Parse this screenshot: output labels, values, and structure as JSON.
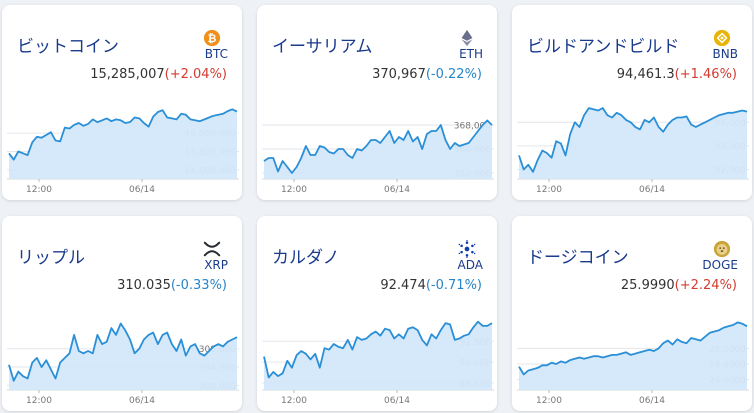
{
  "cards": [
    {
      "id": "btc",
      "name": "ビットコイン",
      "symbol": "BTC",
      "price": "15,285,007",
      "change": "(+2.04%)",
      "direction": "up",
      "icon": "bitcoin-icon",
      "icon_color": "#f0901a",
      "chart_data": {
        "type": "area",
        "ylim": [
          14500000,
          15350000
        ],
        "yticks": [
          15000000,
          14800000,
          14600000
        ],
        "ytick_labels": [
          "15,000,000",
          "14,800,000",
          "14,600,000"
        ],
        "xticks": [
          "12:00",
          "06/14"
        ],
        "values": [
          14780000,
          14710000,
          14800000,
          14780000,
          14760000,
          14900000,
          14960000,
          14950000,
          14980000,
          15010000,
          14920000,
          14910000,
          15060000,
          15050000,
          15090000,
          15110000,
          15080000,
          15100000,
          15150000,
          15120000,
          15140000,
          15160000,
          15130000,
          15150000,
          15140000,
          15110000,
          15120000,
          15170000,
          15160000,
          15110000,
          15070000,
          15180000,
          15230000,
          15250000,
          15170000,
          15160000,
          15150000,
          15210000,
          15200000,
          15150000,
          15140000,
          15130000,
          15150000,
          15170000,
          15190000,
          15200000,
          15210000,
          15240000,
          15260000,
          15235000
        ]
      }
    },
    {
      "id": "eth",
      "name": "イーサリアム",
      "symbol": "ETH",
      "price": "370,967",
      "change": "(-0.22%)",
      "direction": "down",
      "icon": "ethereum-icon",
      "icon_color": "#6b6f8c",
      "chart_data": {
        "type": "area",
        "ylim": [
          350000,
          376000
        ],
        "yticks": [
          368000,
          360000,
          352000
        ],
        "ytick_labels": [
          "368,000",
          "360,000",
          "352,000"
        ],
        "xticks": [
          "12:00",
          "06/14"
        ],
        "values": [
          356000,
          357000,
          357000,
          352500,
          356000,
          354000,
          352000,
          354000,
          357000,
          361000,
          358000,
          358000,
          361000,
          360500,
          359000,
          358500,
          360000,
          360000,
          358000,
          357000,
          360000,
          359500,
          361000,
          363000,
          363000,
          362000,
          364000,
          366000,
          362000,
          364000,
          363000,
          366000,
          362500,
          364000,
          360000,
          365000,
          366000,
          366000,
          368000,
          363000,
          360000,
          362000,
          361000,
          361500,
          362000,
          364000,
          366000,
          368000,
          369500,
          368000
        ]
      }
    },
    {
      "id": "bnb",
      "name": "ビルドアンドビルド",
      "symbol": "BNB",
      "price": "94,461.3",
      "change": "(+1.46%)",
      "direction": "up",
      "icon": "bnb-icon",
      "icon_color": "#e9b308",
      "chart_data": {
        "type": "area",
        "ylim": [
          91600,
          94900
        ],
        "yticks": [
          94000,
          93000,
          92000
        ],
        "ytick_labels": [
          "94,000",
          "93,000",
          "92,000"
        ],
        "xticks": [
          "12:00",
          "06/14"
        ],
        "values": [
          92600,
          92000,
          92200,
          91900,
          92400,
          92800,
          92700,
          92500,
          93200,
          93100,
          92600,
          93500,
          94000,
          93800,
          94300,
          94600,
          94550,
          94500,
          94600,
          94300,
          94200,
          94400,
          94300,
          94100,
          94000,
          93800,
          93700,
          94100,
          94000,
          94200,
          93800,
          93600,
          93900,
          94100,
          94200,
          94200,
          94250,
          93900,
          93800,
          93900,
          94000,
          94100,
          94200,
          94300,
          94350,
          94400,
          94400,
          94450,
          94500,
          94450
        ]
      }
    },
    {
      "id": "xrp",
      "name": "リップル",
      "symbol": "XRP",
      "price": "310.035",
      "change": "(-0.33%)",
      "direction": "down",
      "icon": "xrp-icon",
      "icon_color": "#23292f",
      "chart_data": {
        "type": "area",
        "ylim": [
          299000,
          316000
        ],
        "yticks": [
          308000,
          304000,
          300000
        ],
        "ytick_labels": [
          "308,000",
          "304,000",
          "300,000"
        ],
        "xticks": [
          "12:00",
          "06/14"
        ],
        "values": [
          304500,
          301000,
          303000,
          302000,
          301500,
          305000,
          306000,
          304000,
          305500,
          303500,
          301500,
          305000,
          306000,
          307000,
          311000,
          307500,
          307000,
          307500,
          307000,
          311000,
          309000,
          309500,
          312500,
          311000,
          313500,
          312000,
          310000,
          307000,
          308000,
          310000,
          311000,
          311500,
          309000,
          311000,
          311500,
          309000,
          307500,
          310000,
          306500,
          308500,
          309000,
          307000,
          306500,
          307500,
          308500,
          309000,
          308500,
          309500,
          310000,
          310500
        ]
      }
    },
    {
      "id": "ada",
      "name": "カルダノ",
      "symbol": "ADA",
      "price": "92.474",
      "change": "(-0.71%)",
      "direction": "down",
      "icon": "cardano-icon",
      "icon_color": "#0d3ba8",
      "chart_data": {
        "type": "area",
        "ylim": [
          88.0,
          93.6
        ],
        "yticks": [
          91.5,
          90.0,
          88.5
        ],
        "ytick_labels": [
          "91.500",
          "90.000",
          "88.500"
        ],
        "xticks": [
          "12:00",
          "06/14"
        ],
        "values": [
          90.4,
          88.9,
          89.3,
          89.0,
          89.2,
          90.1,
          89.6,
          90.5,
          90.8,
          90.6,
          90.2,
          90.6,
          89.6,
          91.0,
          90.9,
          91.3,
          91.1,
          91.0,
          91.6,
          90.9,
          91.8,
          91.6,
          91.7,
          92.0,
          92.2,
          91.9,
          92.4,
          92.3,
          91.7,
          92.0,
          91.7,
          92.4,
          92.5,
          92.3,
          91.6,
          91.2,
          92.0,
          91.7,
          92.3,
          92.8,
          92.7,
          91.6,
          91.7,
          91.9,
          92.0,
          92.5,
          92.9,
          92.6,
          92.6,
          92.8
        ]
      }
    },
    {
      "id": "doge",
      "name": "ドージコイン",
      "symbol": "DOGE",
      "price": "25.9990",
      "change": "(+2.24%)",
      "direction": "up",
      "icon": "doge-icon",
      "icon_color": "#c9a43a",
      "chart_data": {
        "type": "area",
        "ylim": [
          23.6,
          26.6
        ],
        "yticks": [
          25.2,
          24.6,
          24.0
        ],
        "ytick_labels": [
          "25.2000",
          "24.6000",
          "24.0000"
        ],
        "xticks": [
          "12:00",
          "06/14"
        ],
        "values": [
          24.5,
          24.2,
          24.35,
          24.4,
          24.45,
          24.55,
          24.55,
          24.65,
          24.6,
          24.7,
          24.65,
          24.75,
          24.8,
          24.85,
          24.8,
          24.85,
          24.9,
          24.9,
          24.85,
          24.9,
          24.95,
          24.95,
          25.0,
          25.05,
          24.95,
          25.0,
          25.05,
          25.1,
          25.15,
          25.1,
          25.2,
          25.4,
          25.5,
          25.35,
          25.55,
          25.45,
          25.4,
          25.6,
          25.55,
          25.5,
          25.65,
          25.8,
          25.85,
          25.9,
          26.0,
          26.05,
          26.1,
          26.2,
          26.15,
          26.05
        ]
      }
    }
  ]
}
